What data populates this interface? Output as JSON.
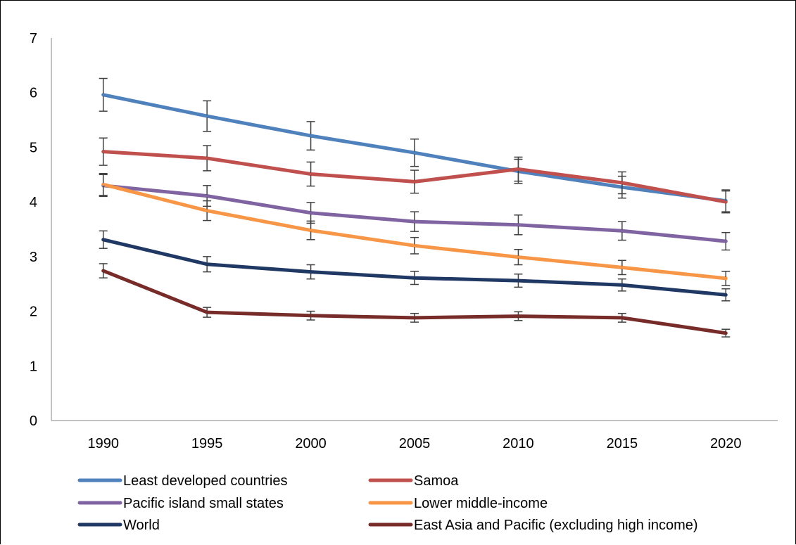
{
  "chart_data": {
    "type": "line",
    "title": "",
    "xlabel": "",
    "ylabel": "",
    "categories": [
      "1990",
      "1995",
      "2000",
      "2005",
      "2010",
      "2015",
      "2020"
    ],
    "ylim": [
      0,
      7
    ],
    "yticks": [
      "0",
      "1",
      "2",
      "3",
      "4",
      "5",
      "6",
      "7"
    ],
    "grid": false,
    "legend_position": "bottom",
    "series": [
      {
        "name": "Least developed countries",
        "color": "#4F81BD",
        "values": [
          5.96,
          5.57,
          5.21,
          4.9,
          4.56,
          4.27,
          4.02
        ],
        "err": [
          0.3,
          0.28,
          0.26,
          0.25,
          0.22,
          0.2,
          0.2
        ]
      },
      {
        "name": "Samoa",
        "color": "#C0504D",
        "values": [
          4.92,
          4.8,
          4.51,
          4.37,
          4.6,
          4.35,
          4.0
        ],
        "err": [
          0.25,
          0.23,
          0.22,
          0.21,
          0.22,
          0.2,
          0.2
        ]
      },
      {
        "name": "Pacific island small states",
        "color": "#8064A2",
        "values": [
          4.3,
          4.11,
          3.8,
          3.64,
          3.58,
          3.47,
          3.28
        ],
        "err": [
          0.2,
          0.19,
          0.19,
          0.18,
          0.18,
          0.17,
          0.16
        ]
      },
      {
        "name": "Lower middle-income",
        "color": "#F79646",
        "values": [
          4.32,
          3.84,
          3.48,
          3.2,
          2.99,
          2.8,
          2.6
        ],
        "err": [
          0.2,
          0.18,
          0.17,
          0.15,
          0.14,
          0.13,
          0.13
        ]
      },
      {
        "name": "World",
        "color": "#1F3864",
        "values": [
          3.31,
          2.86,
          2.72,
          2.61,
          2.56,
          2.48,
          2.3
        ],
        "err": [
          0.16,
          0.14,
          0.13,
          0.12,
          0.12,
          0.11,
          0.11
        ]
      },
      {
        "name": "East Asia and Pacific (excluding high income)",
        "color": "#772C2A",
        "values": [
          2.74,
          1.98,
          1.92,
          1.88,
          1.91,
          1.88,
          1.6
        ],
        "err": [
          0.13,
          0.09,
          0.08,
          0.08,
          0.08,
          0.08,
          0.07
        ]
      }
    ]
  }
}
